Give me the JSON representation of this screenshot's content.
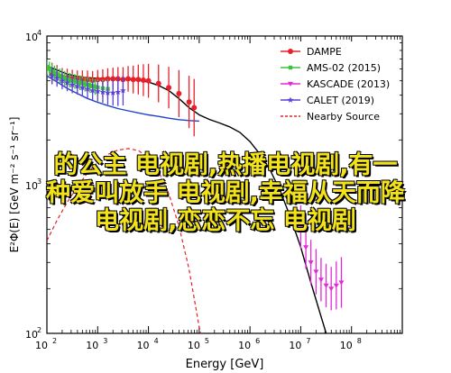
{
  "chart_data": {
    "type": "scatter",
    "xlabel": "Energy [GeV]",
    "ylabel": "E²Φ(E) [GeV m⁻² s⁻¹ sr⁻¹]",
    "x_scale": "log",
    "y_scale": "log",
    "xlim": [
      100,
      1000000000
    ],
    "ylim": [
      100,
      10000
    ],
    "x_ticks": [
      {
        "value": 100,
        "base": "10",
        "exp": "2"
      },
      {
        "value": 1000,
        "base": "10",
        "exp": "3"
      },
      {
        "value": 10000,
        "base": "10",
        "exp": "4"
      },
      {
        "value": 100000,
        "base": "10",
        "exp": "5"
      },
      {
        "value": 1000000,
        "base": "10",
        "exp": "6"
      },
      {
        "value": 10000000,
        "base": "10",
        "exp": "7"
      },
      {
        "value": 100000000,
        "base": "10",
        "exp": "8"
      }
    ],
    "y_ticks": [
      {
        "value": 100,
        "base": "10",
        "exp": "2"
      },
      {
        "value": 1000,
        "base": "10",
        "exp": "3"
      },
      {
        "value": 10000,
        "base": "10",
        "exp": "4"
      }
    ],
    "legend_position": "top-right",
    "series": [
      {
        "name": "DAMPE",
        "color": "#e8202a",
        "marker": "circle",
        "points": [
          [
            126,
            5600,
            18
          ],
          [
            158,
            5500,
            16
          ],
          [
            200,
            5300,
            15
          ],
          [
            251,
            5250,
            15
          ],
          [
            316,
            5200,
            14
          ],
          [
            398,
            5150,
            14
          ],
          [
            501,
            5150,
            14
          ],
          [
            631,
            5100,
            15
          ],
          [
            794,
            5050,
            15
          ],
          [
            1000,
            5100,
            16
          ],
          [
            1260,
            5100,
            17
          ],
          [
            1580,
            5150,
            18
          ],
          [
            2000,
            5150,
            19
          ],
          [
            2510,
            5150,
            20
          ],
          [
            3160,
            5100,
            21
          ],
          [
            3980,
            5150,
            22
          ],
          [
            5010,
            5100,
            24
          ],
          [
            6310,
            5100,
            26
          ],
          [
            7940,
            5050,
            28
          ],
          [
            10000,
            5000,
            30
          ],
          [
            15800,
            4800,
            34
          ],
          [
            25100,
            4500,
            38
          ],
          [
            39800,
            4100,
            44
          ],
          [
            63100,
            3600,
            50
          ],
          [
            79400,
            3300,
            56
          ]
        ]
      },
      {
        "name": "AMS-02 (2015)",
        "color": "#3cc23c",
        "marker": "square",
        "points": [
          [
            100,
            6200,
            12
          ],
          [
            112,
            6000,
            12
          ],
          [
            126,
            5800,
            12
          ],
          [
            141,
            5650,
            12
          ],
          [
            158,
            5500,
            12
          ],
          [
            178,
            5400,
            12
          ],
          [
            200,
            5300,
            12
          ],
          [
            224,
            5200,
            12
          ],
          [
            251,
            5100,
            12
          ],
          [
            282,
            5050,
            12
          ],
          [
            316,
            5000,
            12
          ],
          [
            355,
            4950,
            12
          ],
          [
            398,
            4900,
            12
          ],
          [
            447,
            4850,
            12
          ],
          [
            501,
            4800,
            12
          ],
          [
            562,
            4750,
            12
          ],
          [
            631,
            4700,
            12
          ],
          [
            708,
            4650,
            12
          ],
          [
            794,
            4600,
            13
          ],
          [
            891,
            4550,
            13
          ],
          [
            1000,
            4500,
            14
          ],
          [
            1260,
            4450,
            15
          ],
          [
            1580,
            4400,
            16
          ]
        ]
      },
      {
        "name": "KASCADE (2013)",
        "color": "#e02bd6",
        "marker": "triangle-down",
        "points": [
          [
            10000000,
            520,
            40
          ],
          [
            12600000,
            380,
            40
          ],
          [
            15800000,
            300,
            42
          ],
          [
            20000000,
            260,
            42
          ],
          [
            25100000,
            230,
            40
          ],
          [
            31600000,
            210,
            40
          ],
          [
            39800000,
            200,
            40
          ],
          [
            50100000,
            210,
            45
          ],
          [
            63100000,
            220,
            48
          ]
        ]
      },
      {
        "name": "CALET (2019)",
        "color": "#5b3fd8",
        "marker": "star",
        "points": [
          [
            126,
            5400,
            14
          ],
          [
            158,
            5200,
            14
          ],
          [
            200,
            5000,
            14
          ],
          [
            251,
            4850,
            14
          ],
          [
            316,
            4700,
            14
          ],
          [
            398,
            4600,
            14
          ],
          [
            501,
            4500,
            15
          ],
          [
            631,
            4400,
            15
          ],
          [
            794,
            4300,
            16
          ],
          [
            1000,
            4250,
            17
          ],
          [
            1260,
            4200,
            18
          ],
          [
            1580,
            4150,
            20
          ],
          [
            2000,
            4150,
            22
          ],
          [
            2510,
            4200,
            24
          ],
          [
            3160,
            4300,
            26
          ]
        ]
      }
    ],
    "lines": [
      {
        "name": "",
        "color": "#000000",
        "style": "solid",
        "points": [
          [
            100,
            6300
          ],
          [
            160,
            5900
          ],
          [
            250,
            5550
          ],
          [
            400,
            5350
          ],
          [
            630,
            5250
          ],
          [
            1000,
            5200
          ],
          [
            1600,
            5180
          ],
          [
            2500,
            5150
          ],
          [
            4000,
            5120
          ],
          [
            6300,
            5050
          ],
          [
            10000,
            4900
          ],
          [
            15800,
            4650
          ],
          [
            25100,
            4300
          ],
          [
            39800,
            3800
          ],
          [
            63100,
            3300
          ],
          [
            100000,
            2950
          ],
          [
            158000,
            2750
          ],
          [
            251000,
            2600
          ],
          [
            398000,
            2450
          ],
          [
            631000,
            2250
          ],
          [
            1000000,
            1950
          ],
          [
            1580000,
            1600
          ],
          [
            2510000,
            1250
          ],
          [
            3980000,
            900
          ],
          [
            6310000,
            600
          ],
          [
            10000000,
            380
          ],
          [
            15800000,
            220
          ],
          [
            25100000,
            130
          ],
          [
            31600000,
            100
          ]
        ]
      },
      {
        "name": "",
        "color": "#2040c8",
        "style": "solid",
        "points": [
          [
            100,
            5400
          ],
          [
            160,
            4900
          ],
          [
            250,
            4450
          ],
          [
            400,
            4100
          ],
          [
            630,
            3800
          ],
          [
            1000,
            3580
          ],
          [
            1600,
            3400
          ],
          [
            2500,
            3250
          ],
          [
            4000,
            3140
          ],
          [
            6300,
            3040
          ],
          [
            10000,
            2950
          ],
          [
            15800,
            2880
          ],
          [
            25100,
            2800
          ],
          [
            39800,
            2740
          ],
          [
            63100,
            2700
          ],
          [
            100000,
            2680
          ]
        ]
      },
      {
        "name": "Nearby Source",
        "color": "#e8202a",
        "style": "dashed",
        "points": [
          [
            100,
            420
          ],
          [
            160,
            580
          ],
          [
            250,
            760
          ],
          [
            400,
            970
          ],
          [
            630,
            1200
          ],
          [
            1000,
            1420
          ],
          [
            1600,
            1600
          ],
          [
            2500,
            1710
          ],
          [
            4000,
            1750
          ],
          [
            6300,
            1700
          ],
          [
            10000,
            1520
          ],
          [
            15800,
            1230
          ],
          [
            25100,
            870
          ],
          [
            39800,
            530
          ],
          [
            63100,
            270
          ],
          [
            100000,
            110
          ],
          [
            108000,
            100
          ]
        ]
      }
    ]
  },
  "overlay_text": {
    "line1": "的公主 电视剧,热播电视剧,有一",
    "line2": "种爱叫放手 电视剧,幸福从天而降",
    "line3": "电视剧,恋恋不忘 电视剧"
  }
}
